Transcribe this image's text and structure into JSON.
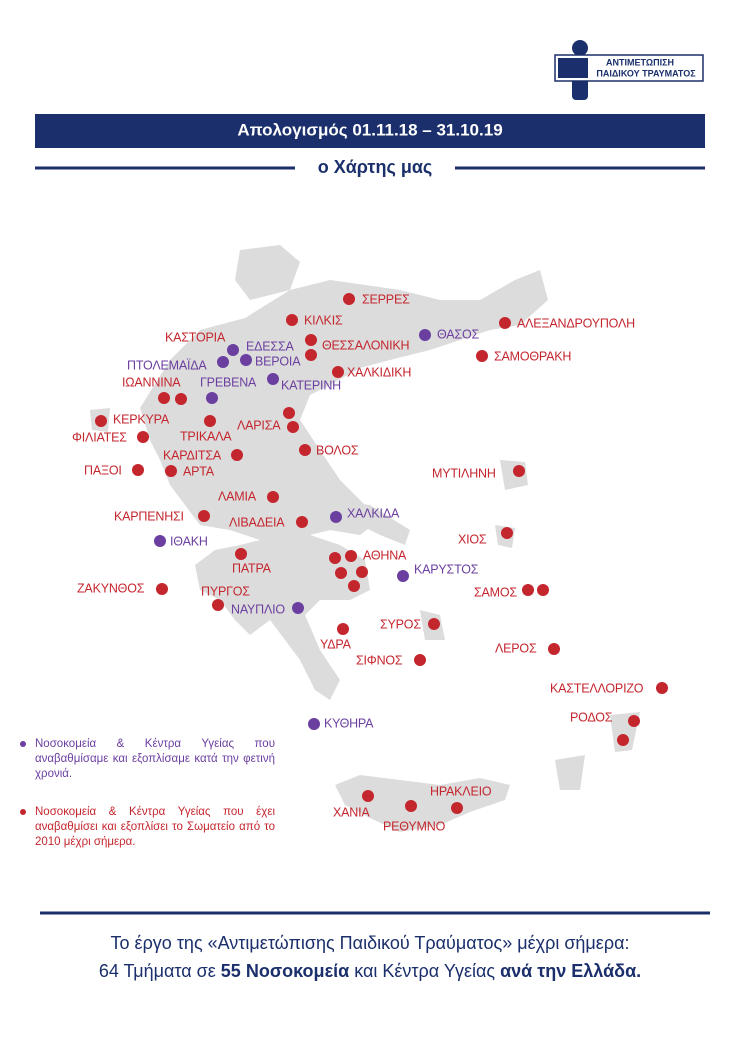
{
  "logo": {
    "line1": "ΑΝΤΙΜΕΤΩΠΙΣΗ",
    "line2": "ΠΑΙΔΙΚΟΥ ΤΡΑΥΜΑΤΟΣ"
  },
  "header": {
    "title": "Απολογισμός 01.11.18 – 31.10.19",
    "subtitle": "ο Χάρτης μας"
  },
  "legend": [
    {
      "text": "Νοσοκομεία & Κέντρα Υγείας που αναβαθμίσαμε και εξοπλίσαμε κατά την φετινή χρονιά.",
      "color": "#6b3fa0",
      "places": [
        "ΕΔΕΣΣΑ",
        "ΠΤΟΛΕΜΑΪΔΑ",
        "ΒΕΡΟΙΑ",
        "ΓΡΕΒΕΝΑ",
        "ΚΑΤΕΡΙΝΗ",
        "ΘΑΣΟΣ",
        "ΧΑΛΚΙΔΑ",
        "ΙΘΑΚΗ",
        "ΚΑΡΥΣΤΟΣ",
        "ΝΑΥΠΛΙΟ",
        "ΚΥΘΗΡΑ"
      ]
    },
    {
      "text": "Νοσοκομεία & Κέντρα Υγείας που έχει αναβαθμίσει και εξοπλίσει το Σωματείο από το 2010 μέχρι σήμερα.",
      "color": "#c4262e",
      "places": [
        "ΣΕΡΡΕΣ",
        "ΚΙΛΚΙΣ",
        "ΑΛΕΞΑΝΔΡΟΥΠΟΛΗ",
        "ΚΑΣΤΟΡΙΑ",
        "ΘΕΣΣΑΛΟΝΙΚΗ",
        "ΣΑΜΟΘΡΑΚΗ",
        "ΙΩΑΝΝΙΝΑ",
        "ΧΑΛΚΙΔΙΚΗ",
        "ΚΕΡΚΥΡΑ",
        "ΦΙΛΙΑΤΕΣ",
        "ΤΡΙΚΑΛΑ",
        "ΛΑΡΙΣΑ",
        "ΚΑΡΔΙΤΣΑ",
        "ΒΟΛΟΣ",
        "ΠΑΞΟΙ",
        "ΑΡΤΑ",
        "ΜΥΤΙΛΗΝΗ",
        "ΛΑΜΙΑ",
        "ΚΑΡΠΕΝΗΣΙ",
        "ΛΙΒΑΔΕΙΑ",
        "ΧΙΟΣ",
        "ΑΘΗΝΑ",
        "ΠΑΤΡΑ",
        "ΖΑΚΥΝΘΟΣ",
        "ΠΥΡΓΟΣ",
        "ΣΑΜΟΣ",
        "ΣΥΡΟΣ",
        "ΥΔΡΑ",
        "ΛΕΡΟΣ",
        "ΣΙΦΝΟΣ",
        "ΚΑΣΤΕΛΛΟΡΙΖΟ",
        "ΡΟΔΟΣ",
        "ΧΑΝΙΑ",
        "ΗΡΑΚΛΕΙΟ",
        "ΡΕΘΥΜΝΟ"
      ]
    }
  ],
  "footer": {
    "line1": "Το έργο της «Αντιμετώπισης Παιδικού Τραύματος» μέχρι σήμερα:",
    "line2": [
      "64 Τμήματα σε ",
      "55 Νοσοκομεία",
      " και Κέντρα Υγείας ",
      "ανά την Ελλάδα."
    ]
  }
}
